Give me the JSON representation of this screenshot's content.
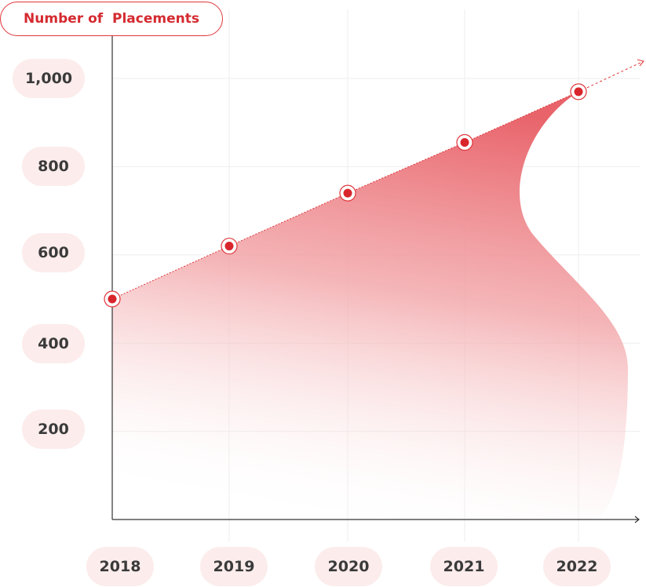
{
  "chart_data": {
    "type": "area",
    "title": "Number of  Placements",
    "xlabel": "",
    "ylabel": "",
    "categories": [
      "2018",
      "2019",
      "2020",
      "2021",
      "2022"
    ],
    "values": [
      500,
      620,
      740,
      855,
      970
    ],
    "y_ticks": [
      "200",
      "400",
      "600",
      "800",
      "1,000"
    ],
    "y_tick_values": [
      200,
      400,
      600,
      800,
      1000
    ],
    "ylim": [
      0,
      1080
    ],
    "grid": true,
    "legend": "none",
    "colors": {
      "accent": "#e0353a",
      "fill": "#e8636a",
      "pill": "#fcecec",
      "axis": "#333333",
      "grid": "#eeeeee"
    }
  }
}
